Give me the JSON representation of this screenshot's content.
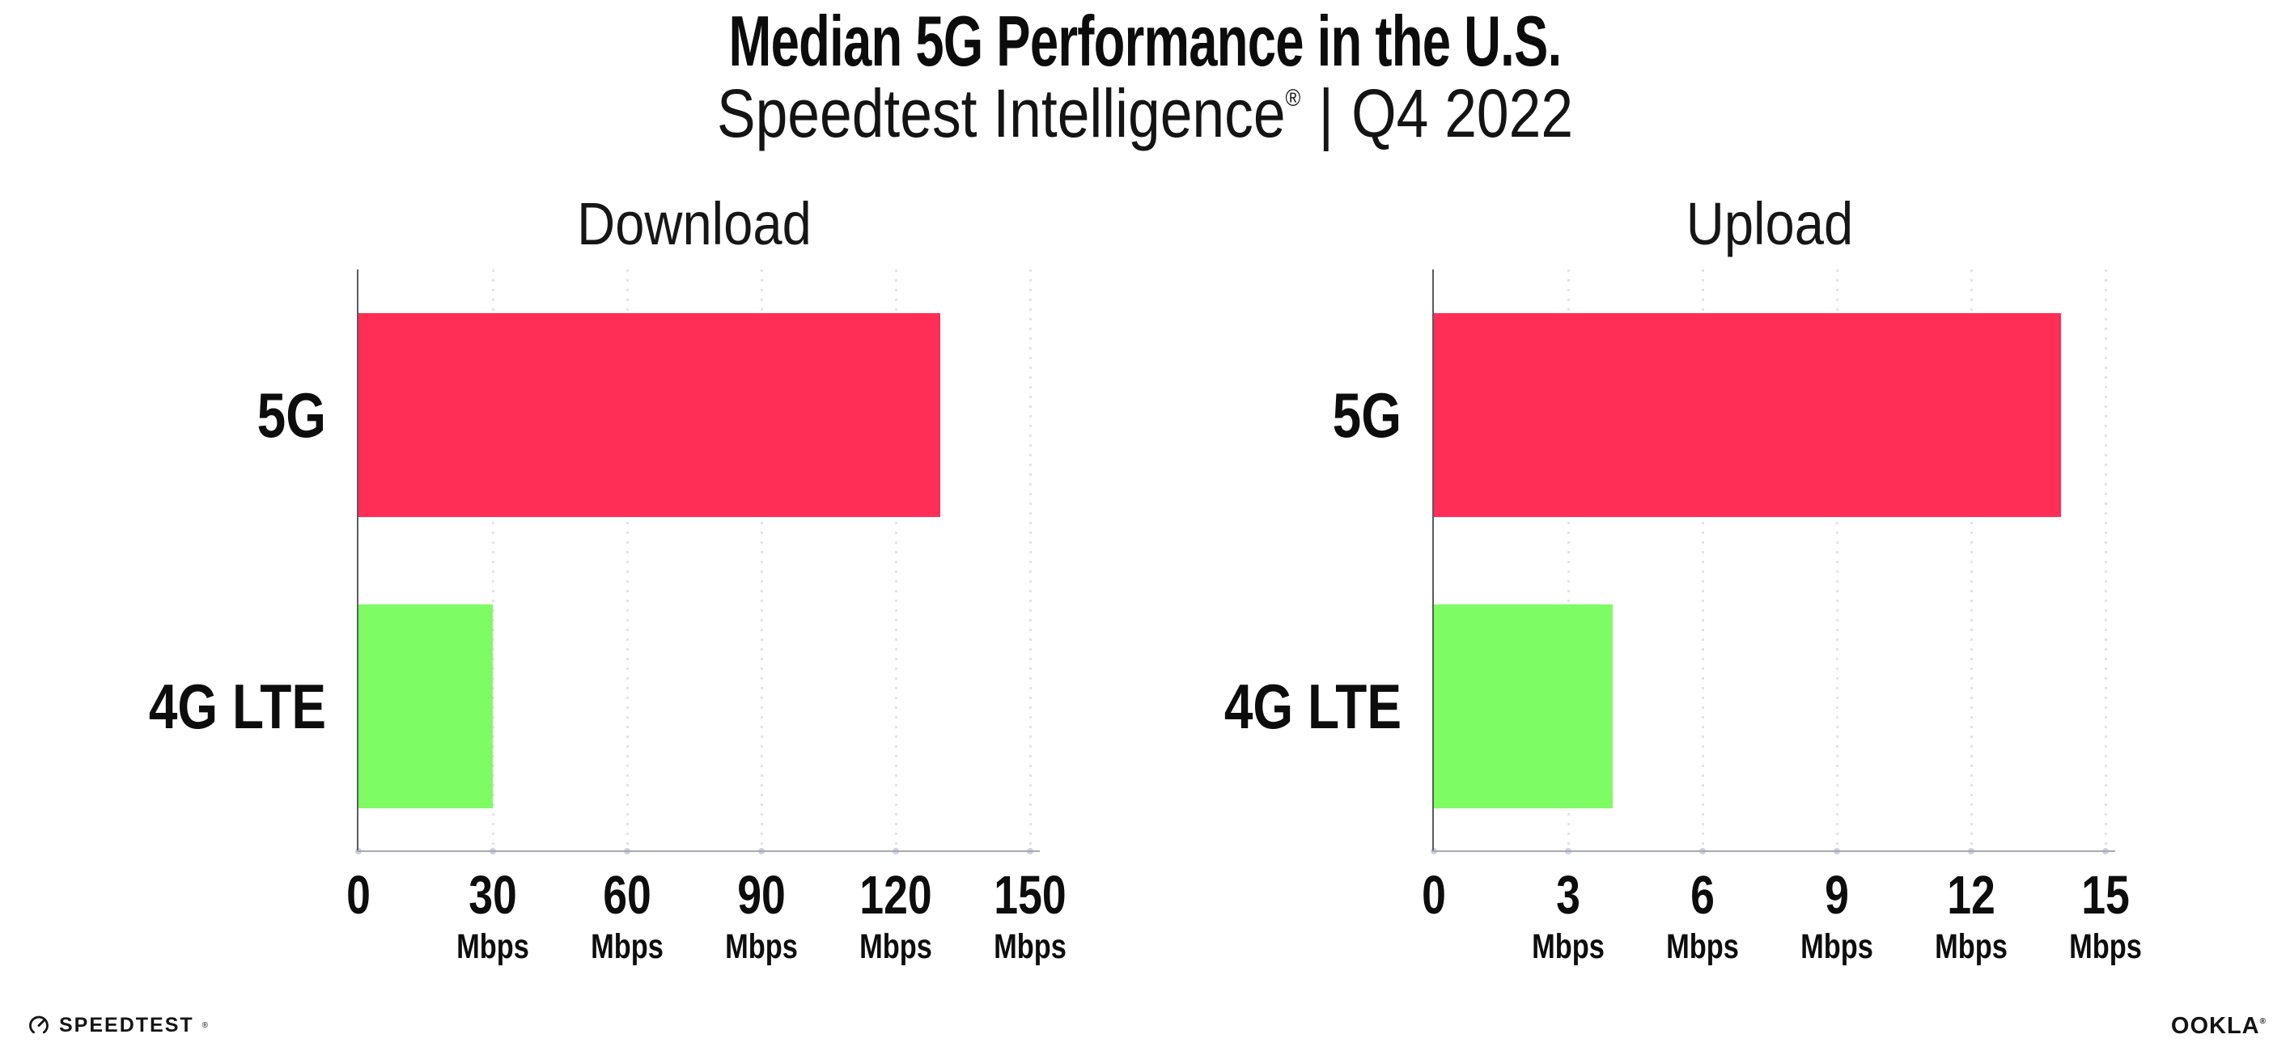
{
  "page": {
    "background": "#ffffff"
  },
  "header": {
    "title": "Median 5G Performance in the U.S.",
    "subtitle_brand": "Speedtest Intelligence",
    "subtitle_reg": "®",
    "subtitle_separator": "|",
    "subtitle_period": "Q4 2022"
  },
  "chart_data": [
    {
      "type": "bar",
      "orientation": "horizontal",
      "title": "Download",
      "categories": [
        "5G",
        "4G LTE"
      ],
      "values": [
        130,
        30
      ],
      "unit": "Mbps",
      "xlim": [
        0,
        150
      ],
      "xticks": [
        0,
        30,
        60,
        90,
        120,
        150
      ],
      "bar_colors": [
        "#ff2e56",
        "#7dfc64"
      ],
      "grid": "dotted-vertical",
      "legend": "none"
    },
    {
      "type": "bar",
      "orientation": "horizontal",
      "title": "Upload",
      "categories": [
        "5G",
        "4G LTE"
      ],
      "values": [
        14,
        4
      ],
      "unit": "Mbps",
      "xlim": [
        0,
        15
      ],
      "xticks": [
        0,
        3,
        6,
        9,
        12,
        15
      ],
      "bar_colors": [
        "#ff2e56",
        "#7dfc64"
      ],
      "grid": "dotted-vertical",
      "legend": "none"
    }
  ],
  "footer": {
    "speedtest_label": "SPEEDTEST",
    "speedtest_reg": "®",
    "ookla_label": "OOKLA",
    "ookla_reg": "®"
  },
  "colors": {
    "bar_5g": "#ff2e56",
    "bar_4g_lte": "#7dfc64",
    "gridline": "#e0e2ef",
    "axis_x": "#a7a8b3",
    "axis_y": "#5a5b64",
    "text": "#0d0d0d"
  }
}
